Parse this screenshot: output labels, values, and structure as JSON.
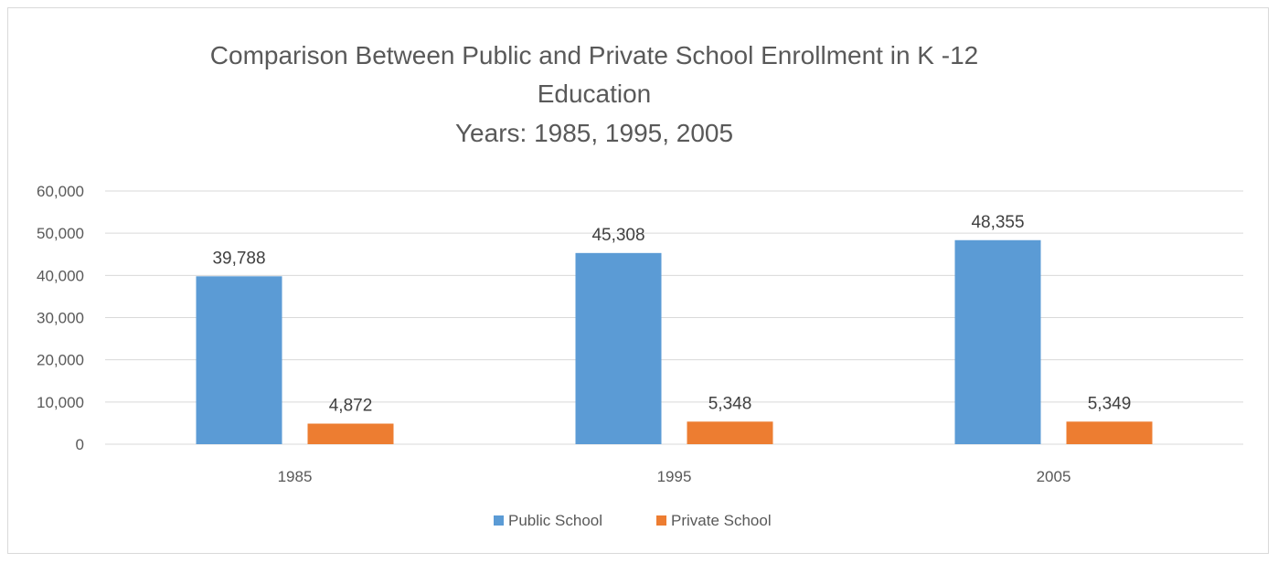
{
  "chart_data": {
    "type": "bar",
    "title_lines": [
      "Comparison Between Public and Private School Enrollment in K -12",
      "Education",
      "Years: 1985, 1995, 2005"
    ],
    "categories": [
      "1985",
      "1995",
      "2005"
    ],
    "series": [
      {
        "name": "Public School",
        "color": "#5b9bd5",
        "values": [
          39788,
          45308,
          48355
        ],
        "labels": [
          "39,788",
          "45,308",
          "48,355"
        ]
      },
      {
        "name": "Private School",
        "color": "#ed7d31",
        "values": [
          4872,
          5348,
          5349
        ],
        "labels": [
          "4,872",
          "5,348",
          "5,349"
        ]
      }
    ],
    "ylim": [
      0,
      60000
    ],
    "yticks": [
      {
        "value": 0,
        "label": "0"
      },
      {
        "value": 10000,
        "label": "10,000"
      },
      {
        "value": 20000,
        "label": "20,000"
      },
      {
        "value": 30000,
        "label": "30,000"
      },
      {
        "value": 40000,
        "label": "40,000"
      },
      {
        "value": 50000,
        "label": "50,000"
      },
      {
        "value": 60000,
        "label": "60,000"
      }
    ],
    "grid": true,
    "legend_position": "bottom",
    "xlabel": "",
    "ylabel": ""
  }
}
